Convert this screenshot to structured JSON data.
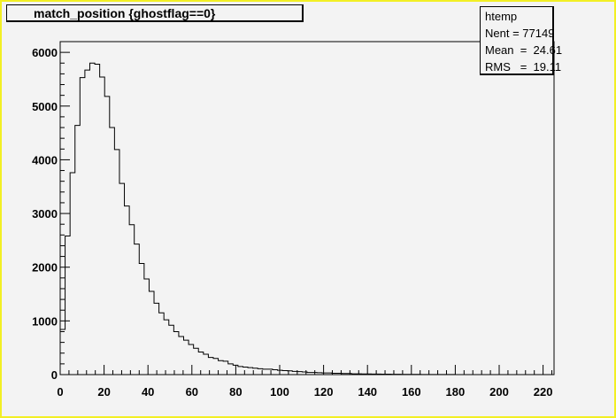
{
  "title": "match_position {ghostflag==0}",
  "stats": {
    "name": "htemp",
    "lines": [
      "Nent = 77149",
      "Mean  =  24.61",
      "RMS   =  19.11"
    ]
  },
  "colors": {
    "frame": "#f2ef24",
    "background": "#f3f3f3",
    "line": "#000000"
  },
  "chart_data": {
    "type": "histogram",
    "title": "match_position {ghostflag==0}",
    "xlabel": "",
    "ylabel": "",
    "xlim": [
      0,
      225
    ],
    "ylim": [
      0,
      6200
    ],
    "x_ticks": [
      0,
      20,
      40,
      60,
      80,
      100,
      120,
      140,
      160,
      180,
      200,
      220
    ],
    "y_ticks": [
      0,
      1000,
      2000,
      3000,
      4000,
      5000,
      6000
    ],
    "bin_width": 2.25,
    "values": [
      840,
      2580,
      3760,
      4640,
      5530,
      5670,
      5800,
      5780,
      5540,
      5180,
      4600,
      4190,
      3560,
      3140,
      2790,
      2430,
      2070,
      1780,
      1550,
      1330,
      1150,
      1020,
      920,
      800,
      710,
      640,
      560,
      490,
      420,
      380,
      320,
      300,
      260,
      250,
      200,
      175,
      150,
      140,
      130,
      120,
      110,
      100,
      100,
      90,
      80,
      75,
      70,
      60,
      55,
      50,
      40,
      40,
      35,
      30,
      30,
      25,
      25,
      20,
      20,
      15,
      15,
      12,
      12,
      10,
      10,
      8,
      8,
      6,
      6,
      5,
      5,
      4,
      4,
      3,
      3,
      3,
      2,
      2,
      2,
      2,
      1,
      1,
      1,
      1,
      1,
      1,
      0,
      0,
      0,
      0,
      0,
      0,
      0,
      0,
      0,
      0,
      0,
      0,
      0,
      0
    ],
    "stats": {
      "name": "htemp",
      "entries": 77149,
      "mean": 24.61,
      "rms": 19.11
    },
    "grid": false
  }
}
